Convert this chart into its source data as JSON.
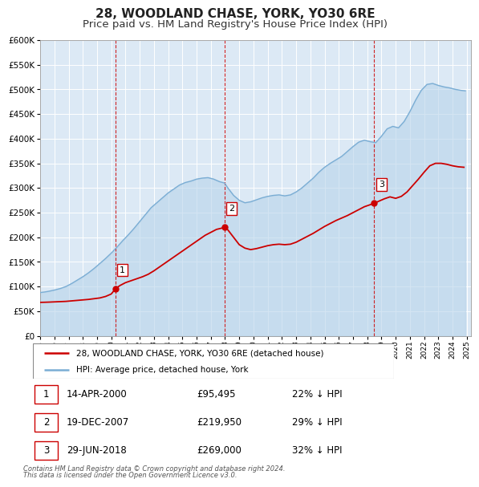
{
  "title": "28, WOODLAND CHASE, YORK, YO30 6RE",
  "subtitle": "Price paid vs. HM Land Registry's House Price Index (HPI)",
  "ylim": [
    0,
    600000
  ],
  "yticks": [
    0,
    50000,
    100000,
    150000,
    200000,
    250000,
    300000,
    350000,
    400000,
    450000,
    500000,
    550000,
    600000
  ],
  "xlim_start": 1995.0,
  "xlim_end": 2025.3,
  "background_color": "#ffffff",
  "plot_bg_color": "#dce9f5",
  "grid_color": "#ffffff",
  "sale_color": "#cc0000",
  "hpi_color": "#7aadd4",
  "hpi_fill_color": "#b8d4ea",
  "legend_label_sale": "28, WOODLAND CHASE, YORK, YO30 6RE (detached house)",
  "legend_label_hpi": "HPI: Average price, detached house, York",
  "transactions": [
    {
      "num": 1,
      "date_label": "14-APR-2000",
      "date_x": 2000.29,
      "price": 95495,
      "price_label": "£95,495",
      "hpi_pct": "22% ↓ HPI"
    },
    {
      "num": 2,
      "date_label": "19-DEC-2007",
      "date_x": 2007.97,
      "price": 219950,
      "price_label": "£219,950",
      "hpi_pct": "29% ↓ HPI"
    },
    {
      "num": 3,
      "date_label": "29-JUN-2018",
      "date_x": 2018.49,
      "price": 269000,
      "price_label": "£269,000",
      "hpi_pct": "32% ↓ HPI"
    }
  ],
  "footnote1": "Contains HM Land Registry data © Crown copyright and database right 2024.",
  "footnote2": "This data is licensed under the Open Government Licence v3.0.",
  "title_fontsize": 11,
  "subtitle_fontsize": 9.5,
  "sale_line_x": [
    1995.0,
    1995.3,
    1995.6,
    1996.0,
    1996.4,
    1996.8,
    1997.2,
    1997.6,
    1998.0,
    1998.4,
    1998.8,
    1999.2,
    1999.6,
    2000.0,
    2000.29,
    2000.6,
    2001.0,
    2001.4,
    2001.8,
    2002.2,
    2002.6,
    2003.0,
    2003.4,
    2003.8,
    2004.2,
    2004.6,
    2005.0,
    2005.4,
    2005.8,
    2006.2,
    2006.6,
    2007.0,
    2007.4,
    2007.97,
    2008.2,
    2008.6,
    2009.0,
    2009.4,
    2009.8,
    2010.2,
    2010.6,
    2011.0,
    2011.4,
    2011.8,
    2012.2,
    2012.6,
    2013.0,
    2013.4,
    2013.8,
    2014.2,
    2014.6,
    2015.0,
    2015.4,
    2015.8,
    2016.2,
    2016.6,
    2017.0,
    2017.4,
    2017.8,
    2018.2,
    2018.49,
    2018.8,
    2019.2,
    2019.6,
    2020.0,
    2020.4,
    2020.8,
    2021.2,
    2021.6,
    2022.0,
    2022.4,
    2022.8,
    2023.2,
    2023.6,
    2024.0,
    2024.4,
    2024.8
  ],
  "sale_line_y": [
    68000,
    68200,
    68500,
    69000,
    69500,
    70000,
    71000,
    72000,
    73000,
    74000,
    75500,
    77000,
    80000,
    85000,
    95495,
    102000,
    108000,
    112000,
    116000,
    120000,
    125000,
    132000,
    140000,
    148000,
    156000,
    164000,
    172000,
    180000,
    188000,
    196000,
    204000,
    210000,
    216000,
    219950,
    215000,
    200000,
    185000,
    178000,
    175000,
    177000,
    180000,
    183000,
    185000,
    186000,
    185000,
    186000,
    190000,
    196000,
    202000,
    208000,
    215000,
    222000,
    228000,
    234000,
    239000,
    244000,
    250000,
    256000,
    262000,
    266000,
    269000,
    273000,
    278000,
    282000,
    279000,
    283000,
    292000,
    305000,
    318000,
    332000,
    345000,
    350000,
    350000,
    348000,
    345000,
    343000,
    342000
  ],
  "hpi_line_x": [
    1995.0,
    1995.3,
    1995.6,
    1996.0,
    1996.4,
    1996.8,
    1997.2,
    1997.6,
    1998.0,
    1998.4,
    1998.8,
    1999.2,
    1999.6,
    2000.0,
    2000.4,
    2000.8,
    2001.2,
    2001.6,
    2002.0,
    2002.4,
    2002.8,
    2003.2,
    2003.6,
    2004.0,
    2004.4,
    2004.8,
    2005.2,
    2005.6,
    2006.0,
    2006.4,
    2006.8,
    2007.2,
    2007.6,
    2007.97,
    2008.2,
    2008.6,
    2009.0,
    2009.4,
    2009.8,
    2010.2,
    2010.6,
    2011.0,
    2011.4,
    2011.8,
    2012.2,
    2012.6,
    2013.0,
    2013.4,
    2013.8,
    2014.2,
    2014.6,
    2015.0,
    2015.4,
    2015.8,
    2016.2,
    2016.6,
    2017.0,
    2017.4,
    2017.8,
    2018.2,
    2018.6,
    2019.0,
    2019.4,
    2019.8,
    2020.2,
    2020.6,
    2021.0,
    2021.4,
    2021.8,
    2022.2,
    2022.6,
    2023.0,
    2023.4,
    2023.8,
    2024.2,
    2024.6,
    2024.9
  ],
  "hpi_line_y": [
    88000,
    89000,
    90500,
    93000,
    96000,
    100000,
    106000,
    113000,
    120000,
    128000,
    137000,
    147000,
    157000,
    168000,
    180000,
    193000,
    205000,
    218000,
    232000,
    246000,
    260000,
    270000,
    280000,
    290000,
    298000,
    306000,
    311000,
    314000,
    318000,
    320000,
    321000,
    318000,
    313000,
    310000,
    300000,
    285000,
    275000,
    270000,
    272000,
    276000,
    280000,
    283000,
    285000,
    286000,
    284000,
    286000,
    292000,
    300000,
    310000,
    320000,
    332000,
    342000,
    350000,
    357000,
    364000,
    374000,
    384000,
    393000,
    397000,
    394000,
    392000,
    405000,
    420000,
    425000,
    422000,
    435000,
    455000,
    478000,
    498000,
    510000,
    512000,
    508000,
    505000,
    503000,
    500000,
    498000,
    497000
  ]
}
